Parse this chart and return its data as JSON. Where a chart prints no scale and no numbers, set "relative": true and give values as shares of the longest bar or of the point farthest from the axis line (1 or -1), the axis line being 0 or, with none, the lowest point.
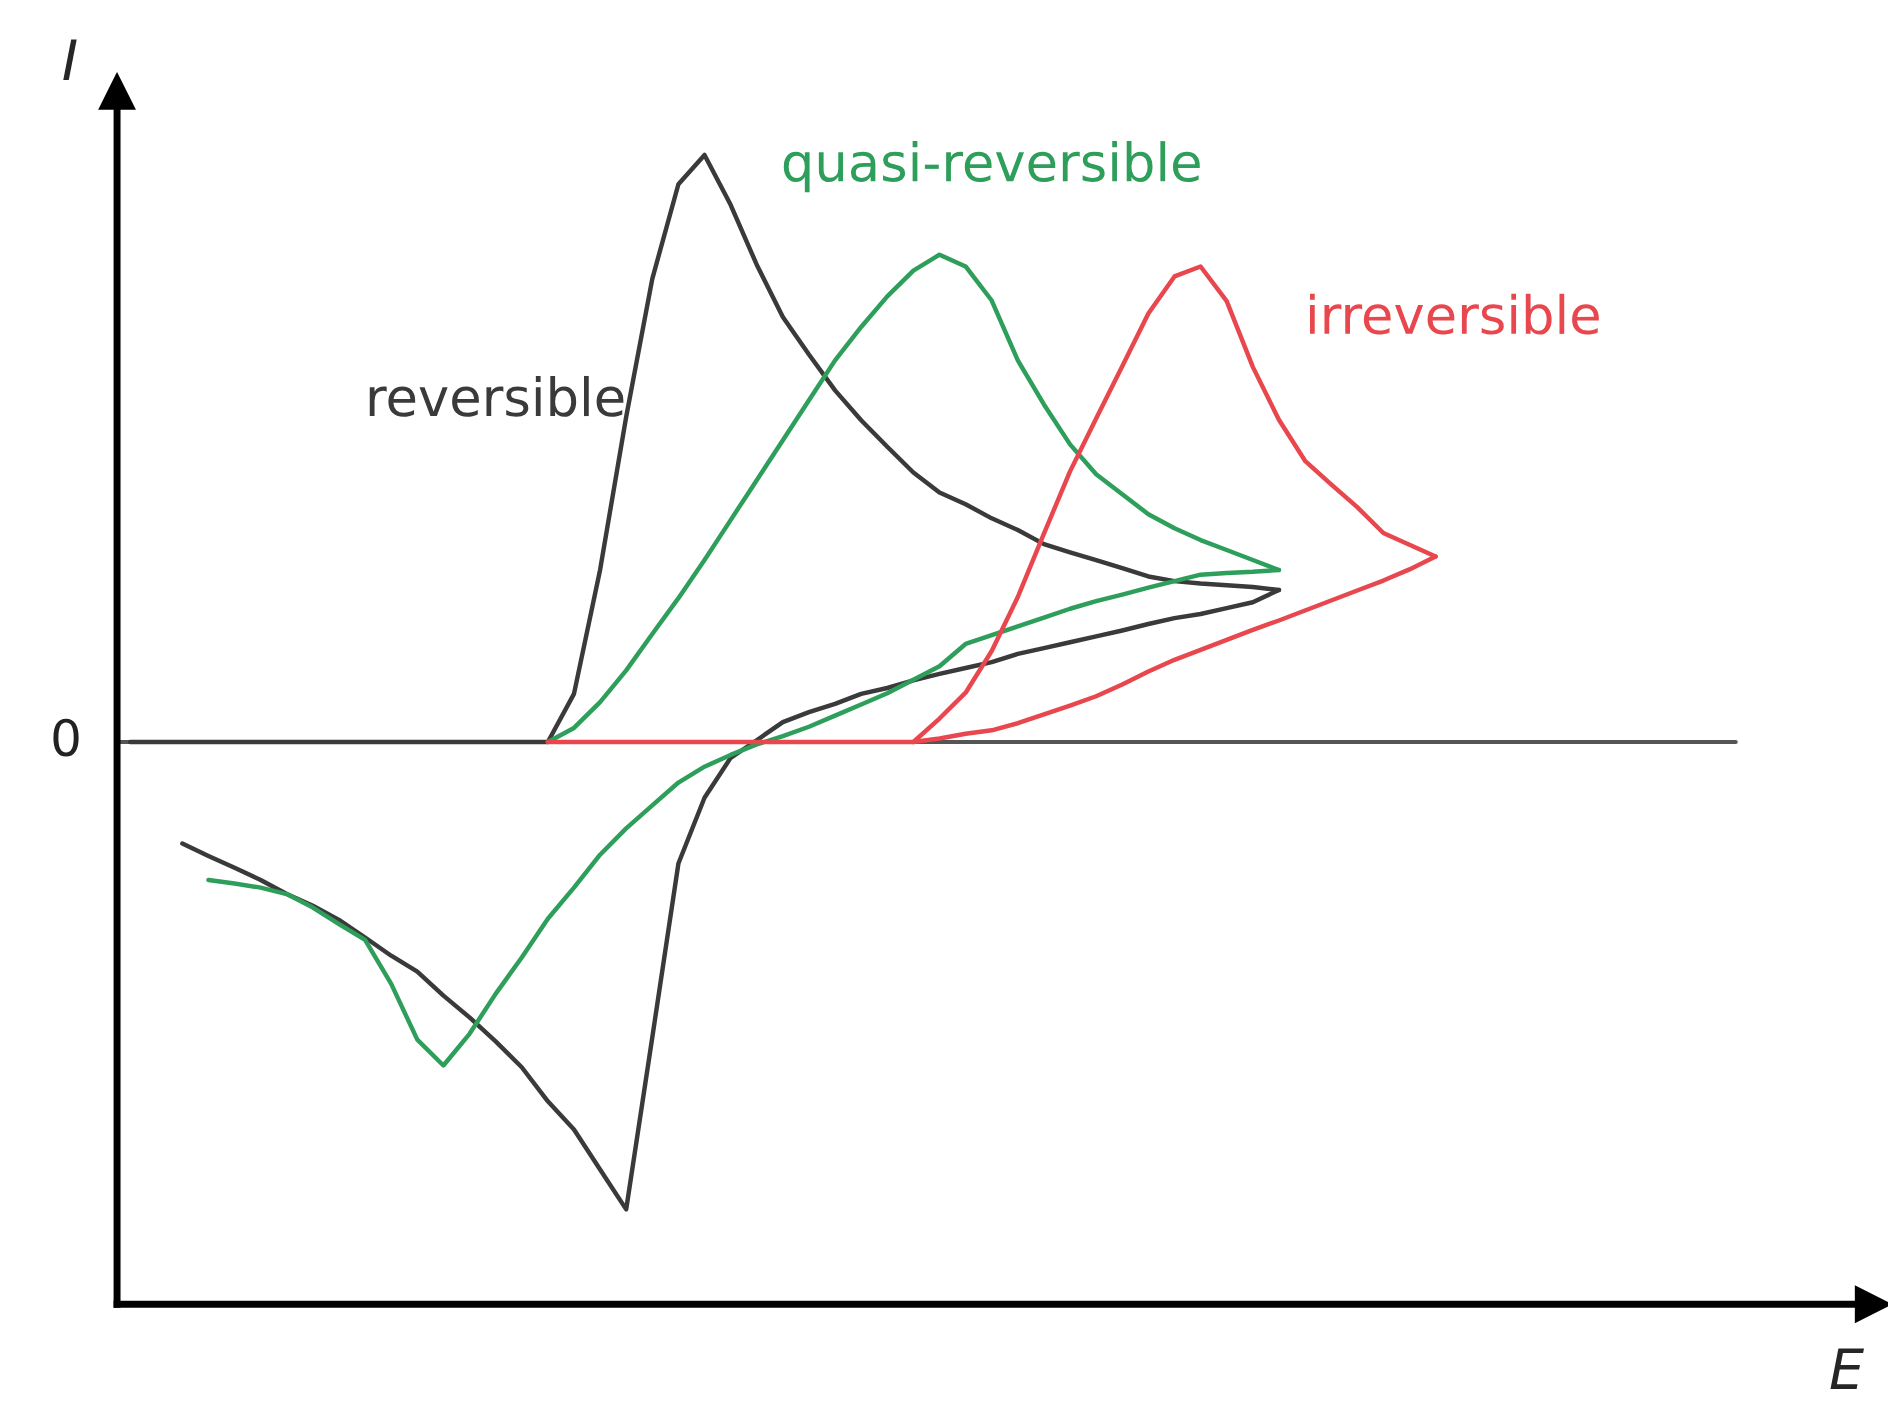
{
  "chart_data": {
    "type": "line",
    "relative": true,
    "annotations": [
      "E"
    ],
    "ylabel": "I",
    "marker": "none",
    "line_style": "solid",
    "categories": [
      null,
      null,
      null,
      null,
      null,
      null,
      null,
      null,
      null,
      null,
      null,
      null,
      null,
      null,
      null,
      null,
      null,
      null,
      null,
      null,
      null,
      null,
      null,
      null,
      null,
      null,
      null,
      null,
      null,
      null,
      null,
      null,
      null,
      null,
      null,
      null,
      null,
      null,
      null,
      null,
      null,
      null,
      null,
      null,
      null,
      null,
      null,
      null,
      null,
      null,
      null
    ],
    "ref_lines": [
      {
        "axis": "y",
        "value": 0,
        "label": "0",
        "color": "#555555"
      }
    ],
    "series": [
      {
        "name": "reversible",
        "color": "#3a3a3a",
        "values": [
          0,
          0,
          0,
          0,
          0,
          0,
          0,
          0,
          0,
          0,
          0,
          0,
          0,
          0,
          0,
          0,
          0,
          0.082,
          0.293,
          0.554,
          0.789,
          0.95,
          1,
          0.915,
          0.813,
          0.724,
          0.66,
          0.599,
          0.548,
          0.503,
          0.459,
          0.425,
          0.405,
          0.381,
          0.361,
          0.337,
          0.323,
          0.31,
          0.296,
          0.282,
          0.274,
          0.27,
          0.267,
          0.264,
          0.259,
          null,
          null,
          null,
          null,
          null,
          null
        ]
      },
      {
        "color": "#3a3a3a",
        "values": [
          null,
          null,
          -0.173,
          -0.194,
          -0.214,
          -0.235,
          -0.259,
          -0.279,
          -0.303,
          -0.333,
          -0.364,
          -0.391,
          -0.432,
          -0.469,
          -0.51,
          -0.554,
          -0.612,
          -0.66,
          -0.728,
          -0.796,
          -0.503,
          -0.207,
          -0.095,
          -0.027,
          0.003,
          0.034,
          0.051,
          0.065,
          0.082,
          0.092,
          0.105,
          0.116,
          0.126,
          0.136,
          0.15,
          0.16,
          0.17,
          0.18,
          0.19,
          0.201,
          0.211,
          0.218,
          0.228,
          0.238,
          0.259,
          null,
          null,
          null,
          null,
          null,
          null
        ]
      },
      {
        "name": "quasi-reversible",
        "color": "#2e9e5b",
        "values": [
          null,
          null,
          null,
          null,
          null,
          null,
          null,
          null,
          null,
          null,
          null,
          null,
          null,
          null,
          null,
          null,
          0,
          0.024,
          0.068,
          0.122,
          0.184,
          0.245,
          0.31,
          0.378,
          0.446,
          0.514,
          0.582,
          0.65,
          0.707,
          0.759,
          0.803,
          0.83,
          0.81,
          0.752,
          0.65,
          0.575,
          0.507,
          0.456,
          0.422,
          0.388,
          0.364,
          0.344,
          0.327,
          0.31,
          0.293,
          null,
          null,
          null,
          null,
          null,
          null
        ]
      },
      {
        "color": "#2e9e5b",
        "values": [
          null,
          null,
          null,
          -0.235,
          -0.241,
          -0.248,
          -0.259,
          -0.282,
          -0.31,
          -0.337,
          -0.412,
          -0.507,
          -0.551,
          -0.497,
          -0.429,
          -0.367,
          -0.301,
          -0.248,
          -0.192,
          -0.147,
          -0.108,
          -0.069,
          -0.042,
          -0.022,
          -0.004,
          0.01,
          0.026,
          0.045,
          0.064,
          0.083,
          0.106,
          0.129,
          0.167,
          0.182,
          0.197,
          0.212,
          0.227,
          0.24,
          0.251,
          0.263,
          0.274,
          0.285,
          0.288,
          0.29,
          0.293,
          null,
          null,
          null,
          null,
          null,
          null
        ]
      },
      {
        "color": "#e8474e",
        "values": [
          null,
          null,
          null,
          null,
          null,
          null,
          null,
          null,
          null,
          null,
          null,
          null,
          null,
          null,
          null,
          null,
          0,
          0,
          0,
          0,
          0,
          0,
          0,
          0,
          0,
          0,
          0,
          0,
          0,
          0,
          0,
          0.006,
          0.014,
          0.02,
          0.032,
          0.047,
          0.062,
          0.078,
          0.098,
          0.12,
          0.14,
          0.157,
          0.174,
          0.191,
          0.207,
          0.224,
          0.241,
          0.258,
          0.275,
          0.294,
          0.316
        ]
      },
      {
        "name": "irreversible",
        "color": "#e8474e",
        "values": [
          null,
          null,
          null,
          null,
          null,
          null,
          null,
          null,
          null,
          null,
          null,
          null,
          null,
          null,
          null,
          null,
          null,
          null,
          null,
          null,
          null,
          null,
          null,
          null,
          null,
          null,
          null,
          null,
          null,
          null,
          0,
          0.04,
          0.084,
          0.155,
          0.247,
          0.355,
          0.461,
          0.551,
          0.64,
          0.73,
          0.793,
          0.81,
          0.751,
          0.639,
          0.549,
          0.479,
          0.439,
          0.4,
          0.356,
          0.336,
          0.316
        ]
      }
    ]
  }
}
